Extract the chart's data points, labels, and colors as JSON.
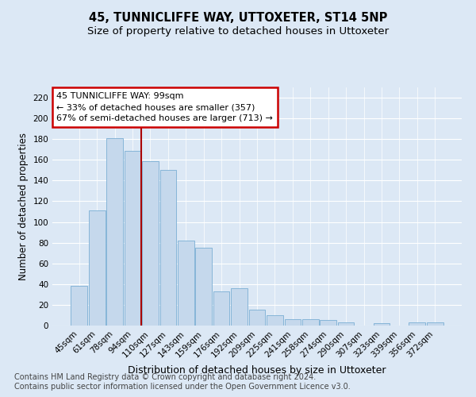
{
  "title": "45, TUNNICLIFFE WAY, UTTOXETER, ST14 5NP",
  "subtitle": "Size of property relative to detached houses in Uttoxeter",
  "xlabel": "Distribution of detached houses by size in Uttoxeter",
  "ylabel": "Number of detached properties",
  "categories": [
    "45sqm",
    "61sqm",
    "78sqm",
    "94sqm",
    "110sqm",
    "127sqm",
    "143sqm",
    "159sqm",
    "176sqm",
    "192sqm",
    "209sqm",
    "225sqm",
    "241sqm",
    "258sqm",
    "274sqm",
    "290sqm",
    "307sqm",
    "323sqm",
    "339sqm",
    "356sqm",
    "372sqm"
  ],
  "values": [
    38,
    111,
    181,
    169,
    159,
    150,
    82,
    75,
    33,
    36,
    15,
    10,
    6,
    6,
    5,
    3,
    0,
    2,
    0,
    3,
    3
  ],
  "bar_color": "#c5d8ec",
  "bar_edge_color": "#7aaed4",
  "vline_x_index": 3.5,
  "vline_color": "#aa0000",
  "annotation_title": "45 TUNNICLIFFE WAY: 99sqm",
  "annotation_line1": "← 33% of detached houses are smaller (357)",
  "annotation_line2": "67% of semi-detached houses are larger (713) →",
  "annotation_box_color": "#cc0000",
  "ylim": [
    0,
    230
  ],
  "yticks": [
    0,
    20,
    40,
    60,
    80,
    100,
    120,
    140,
    160,
    180,
    200,
    220
  ],
  "footnote1": "Contains HM Land Registry data © Crown copyright and database right 2024.",
  "footnote2": "Contains public sector information licensed under the Open Government Licence v3.0.",
  "background_color": "#dce8f5",
  "grid_color": "#ffffff",
  "title_fontsize": 10.5,
  "subtitle_fontsize": 9.5,
  "ylabel_fontsize": 8.5,
  "xlabel_fontsize": 9,
  "tick_fontsize": 7.5,
  "annotation_fontsize": 8,
  "footnote_fontsize": 7
}
